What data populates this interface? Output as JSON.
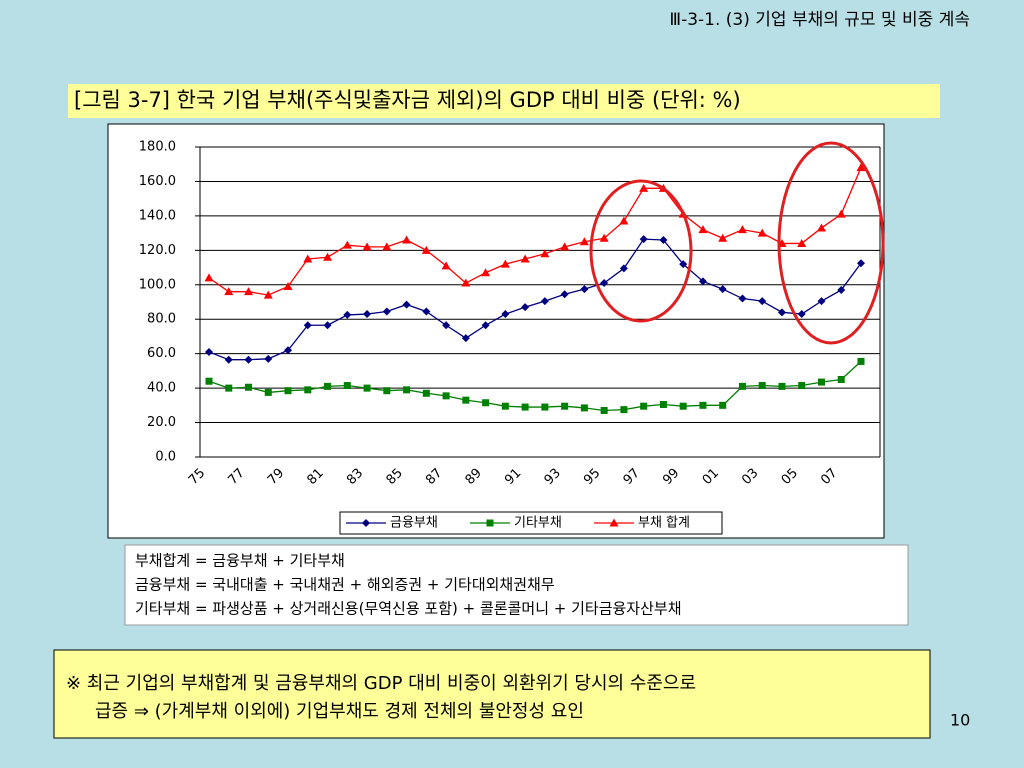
{
  "header": "Ⅲ-3-1. (3) 기업 부채의 규모 및 비중 계속",
  "chart_data": {
    "type": "line",
    "title": "[그림 3-7] 한국 기업 부채(주식및출자금 제외)의 GDP 대비 비중 (단위: %)",
    "categories": [
      "75",
      null,
      "77",
      null,
      "79",
      null,
      "81",
      null,
      "83",
      null,
      "85",
      null,
      "87",
      null,
      "89",
      null,
      "91",
      null,
      "93",
      null,
      "95",
      null,
      "97",
      null,
      "99",
      null,
      "01",
      null,
      "03",
      null,
      "05",
      null,
      "07",
      null
    ],
    "series": [
      {
        "name": "금융부채",
        "color": "#000080",
        "marker": "diamond",
        "values": [
          61,
          56.5,
          56.5,
          57,
          62,
          76.5,
          76.5,
          82.5,
          83,
          84.5,
          88.5,
          84.5,
          76.5,
          69,
          76.5,
          83,
          87,
          90.5,
          94.5,
          97.5,
          101,
          109.5,
          126.5,
          126,
          112,
          102,
          97.5,
          92,
          90.5,
          84,
          83,
          90.5,
          97,
          112.5
        ]
      },
      {
        "name": "기타부채",
        "color": "#008000",
        "marker": "square",
        "values": [
          44,
          40,
          40.5,
          37.5,
          38.5,
          39,
          41,
          41.5,
          40,
          38.5,
          39,
          37,
          35.5,
          33,
          31.5,
          29.5,
          29,
          29,
          29.5,
          28.5,
          27,
          27.5,
          29.5,
          30.5,
          29.5,
          30,
          30,
          41,
          41.5,
          41,
          41.5,
          43.5,
          45,
          55.5
        ]
      },
      {
        "name": "부채 합계",
        "color": "#ff0000",
        "marker": "triangle",
        "values": [
          104,
          96,
          96,
          94,
          99,
          115,
          116,
          123,
          122,
          122,
          126,
          120,
          111,
          101,
          107,
          112,
          115,
          118,
          122,
          125,
          127,
          137,
          156,
          156,
          141,
          132,
          127,
          132,
          130,
          124,
          124,
          133,
          141,
          168
        ]
      }
    ],
    "ylim": [
      0,
      180
    ],
    "yticks": [
      {
        "value": 0,
        "label": "0.0"
      },
      {
        "value": 20,
        "label": "20.0"
      },
      {
        "value": 40,
        "label": "40.0"
      },
      {
        "value": 60,
        "label": "60.0"
      },
      {
        "value": 80,
        "label": "80.0"
      },
      {
        "value": 100,
        "label": "100.0"
      },
      {
        "value": 120,
        "label": "120.0"
      },
      {
        "value": 140,
        "label": "140.0"
      },
      {
        "value": 160,
        "label": "160.0"
      },
      {
        "value": 180,
        "label": "180.0"
      }
    ],
    "grid": true,
    "legend": "bottom"
  },
  "definitions": [
    "부채합계 = 금융부채 + 기타부채",
    "금융부채 = 국내대출 + 국내채권 + 해외증권 + 기타대외채권채무",
    "기타부채 = 파생상품 + 상거래신용(무역신용 포함) + 콜론콜머니 + 기타금융자산부채"
  ],
  "note": [
    "※ 최근 기업의 부채합계 및 금융부채의 GDP 대비 비중이 외환위기 당시의 수준으로",
    "급증 ⇒ (가계부채 이외에) 기업부채도 경제 전체의 불안정성 요인"
  ],
  "page_number": "10"
}
